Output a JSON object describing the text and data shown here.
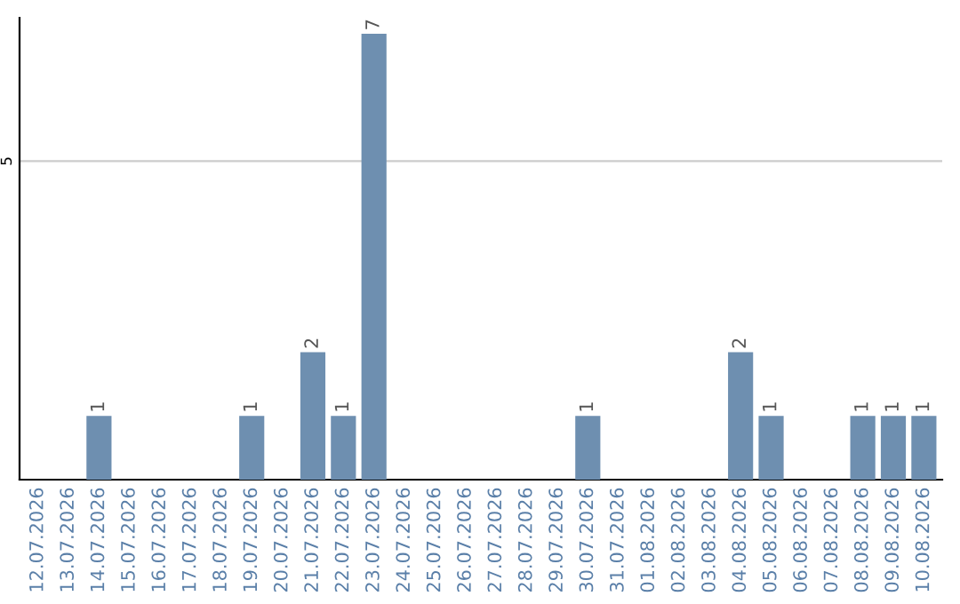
{
  "chart_data": {
    "type": "bar",
    "categories": [
      "12.07.2026",
      "13.07.2026",
      "14.07.2026",
      "15.07.2026",
      "16.07.2026",
      "17.07.2026",
      "18.07.2026",
      "19.07.2026",
      "20.07.2026",
      "21.07.2026",
      "22.07.2026",
      "23.07.2026",
      "24.07.2026",
      "25.07.2026",
      "26.07.2026",
      "27.07.2026",
      "28.07.2026",
      "29.07.2026",
      "30.07.2026",
      "31.07.2026",
      "01.08.2026",
      "02.08.2026",
      "03.08.2026",
      "04.08.2026",
      "05.08.2026",
      "06.08.2026",
      "07.08.2026",
      "08.08.2026",
      "09.08.2026",
      "10.08.2026"
    ],
    "values": [
      0,
      0,
      1,
      0,
      0,
      0,
      0,
      1,
      0,
      2,
      1,
      7,
      0,
      0,
      0,
      0,
      0,
      0,
      1,
      0,
      0,
      0,
      0,
      2,
      1,
      0,
      0,
      1,
      1,
      1
    ],
    "value_labels": [
      null,
      null,
      "1",
      null,
      null,
      null,
      null,
      "1",
      null,
      "2",
      "1",
      "7",
      null,
      null,
      null,
      null,
      null,
      null,
      "1",
      null,
      null,
      null,
      null,
      "2",
      "1",
      null,
      null,
      "1",
      "1",
      "1"
    ],
    "color": "#6e8fb0",
    "ylim": [
      0,
      7.25
    ],
    "yticks": [
      5
    ],
    "grid": "y"
  }
}
